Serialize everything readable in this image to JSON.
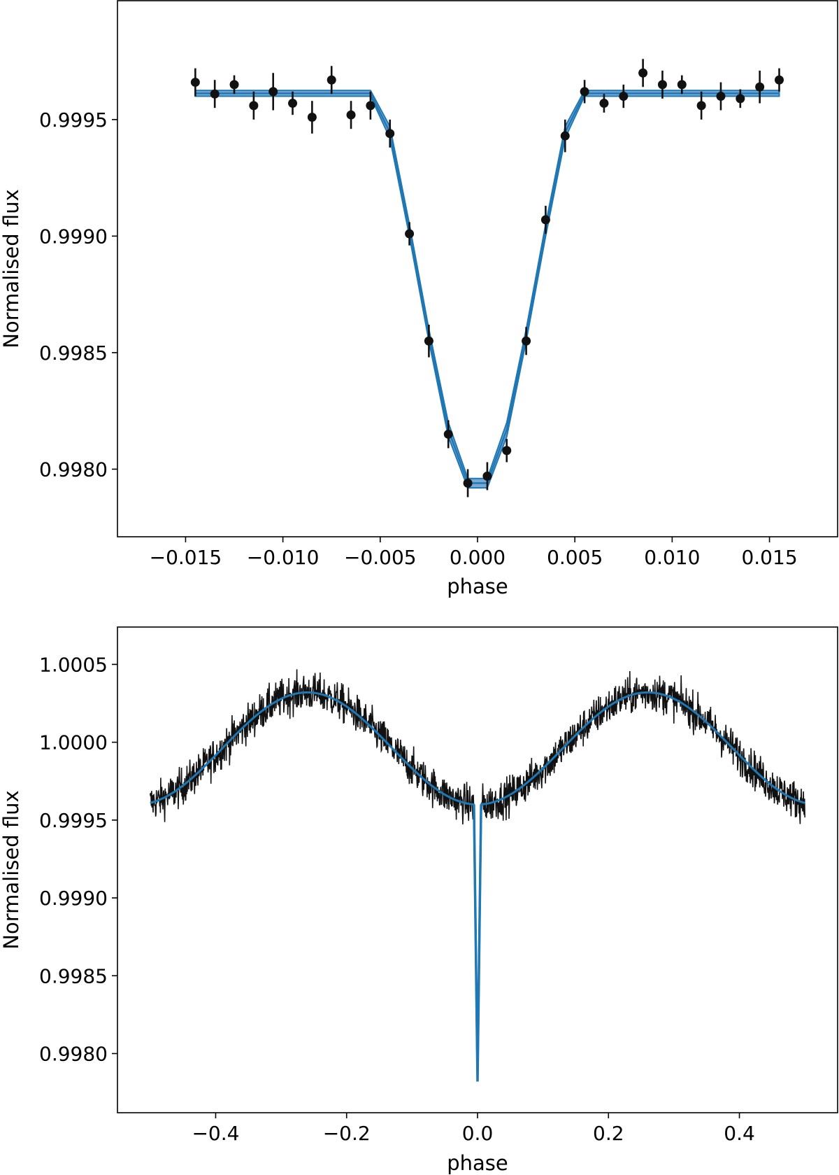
{
  "colors": {
    "model": "#1f77b4",
    "model_band": "#4e8cc6",
    "data": "#111111",
    "axes": "#000000",
    "background": "#ffffff"
  },
  "chart_data": [
    {
      "type": "scatter",
      "title": "",
      "xlabel": "phase",
      "ylabel": "Normalised flux",
      "xlim": [
        -0.0185,
        0.0185
      ],
      "ylim": [
        0.99771,
        1.00001
      ],
      "grid": false,
      "xticks": [
        -0.015,
        -0.01,
        -0.005,
        0.0,
        0.005,
        0.01,
        0.015
      ],
      "xtick_labels": [
        "−0.015",
        "−0.010",
        "−0.005",
        "0.000",
        "0.005",
        "0.010",
        "0.015"
      ],
      "yticks": [
        0.998,
        0.9985,
        0.999,
        0.9995
      ],
      "ytick_labels": [
        "0.9980",
        "0.9985",
        "0.9990",
        "0.9995"
      ],
      "series": [
        {
          "kind": "points_with_errorbars",
          "x": [
            -0.0145,
            -0.0135,
            -0.0125,
            -0.0115,
            -0.0105,
            -0.0095,
            -0.0085,
            -0.0075,
            -0.0065,
            -0.0055,
            -0.0045,
            -0.0035,
            -0.0025,
            -0.0015,
            -0.0005,
            0.0005,
            0.0015,
            0.0025,
            0.0035,
            0.0045,
            0.0055,
            0.0065,
            0.0075,
            0.0085,
            0.0095,
            0.0105,
            0.0115,
            0.0125,
            0.0135,
            0.0145,
            0.0155
          ],
          "y": [
            0.99966,
            0.99961,
            0.99965,
            0.99956,
            0.99962,
            0.99957,
            0.99951,
            0.99967,
            0.99952,
            0.99956,
            0.99944,
            0.99901,
            0.99855,
            0.99815,
            0.99794,
            0.99797,
            0.99808,
            0.99855,
            0.99907,
            0.99943,
            0.99962,
            0.99957,
            0.9996,
            0.9997,
            0.99965,
            0.99965,
            0.99956,
            0.9996,
            0.99959,
            0.99964,
            0.99967
          ],
          "yerr": [
            6e-05,
            6e-05,
            4e-05,
            6e-05,
            8e-05,
            5e-05,
            7e-05,
            6e-05,
            6e-05,
            6e-05,
            6e-05,
            5e-05,
            7e-05,
            6e-05,
            6e-05,
            6e-05,
            5e-05,
            6e-05,
            6e-05,
            7e-05,
            5e-05,
            4e-05,
            5e-05,
            6e-05,
            6e-05,
            4e-05,
            6e-05,
            6e-05,
            4e-05,
            7e-05,
            5e-05
          ]
        },
        {
          "kind": "model_band",
          "x": [
            -0.0145,
            -0.0055,
            -0.0045,
            -0.0035,
            -0.0025,
            -0.0015,
            -0.0005,
            0.0005,
            0.0015,
            0.0025,
            0.0035,
            0.0045,
            0.0055,
            0.0155
          ],
          "lower": [
            0.9996,
            0.9996,
            0.99942,
            0.999,
            0.99855,
            0.99814,
            0.99792,
            0.99792,
            0.99814,
            0.99855,
            0.999,
            0.99942,
            0.9996,
            0.9996
          ],
          "upper": [
            0.999625,
            0.999625,
            0.99947,
            0.99905,
            0.9986,
            0.9982,
            0.99796,
            0.99796,
            0.9982,
            0.9986,
            0.99905,
            0.99947,
            0.999625,
            0.999625
          ]
        }
      ]
    },
    {
      "type": "line",
      "title": "",
      "xlabel": "phase",
      "ylabel": "Normalised flux",
      "xlim": [
        -0.55,
        0.55
      ],
      "ylim": [
        0.99762,
        1.00074
      ],
      "grid": false,
      "xticks": [
        -0.4,
        -0.2,
        0.0,
        0.2,
        0.4
      ],
      "xtick_labels": [
        "−0.4",
        "−0.2",
        "0.0",
        "0.2",
        "0.4"
      ],
      "yticks": [
        0.998,
        0.9985,
        0.999,
        0.9995,
        1.0,
        1.0005
      ],
      "ytick_labels": [
        "0.9980",
        "0.9985",
        "0.9990",
        "0.9995",
        "1.0000",
        "1.0005"
      ],
      "series": [
        {
          "kind": "noisy_data",
          "phase_range": [
            -0.5,
            0.5
          ],
          "noise_amplitude": 0.00012
        },
        {
          "kind": "model",
          "baseline": 0.99996,
          "semi_amplitude": 0.00036,
          "phase_of_max": [
            -0.26,
            0.26
          ],
          "transit_min": 0.99782,
          "transit_halfwidth": 0.0055
        }
      ]
    }
  ]
}
